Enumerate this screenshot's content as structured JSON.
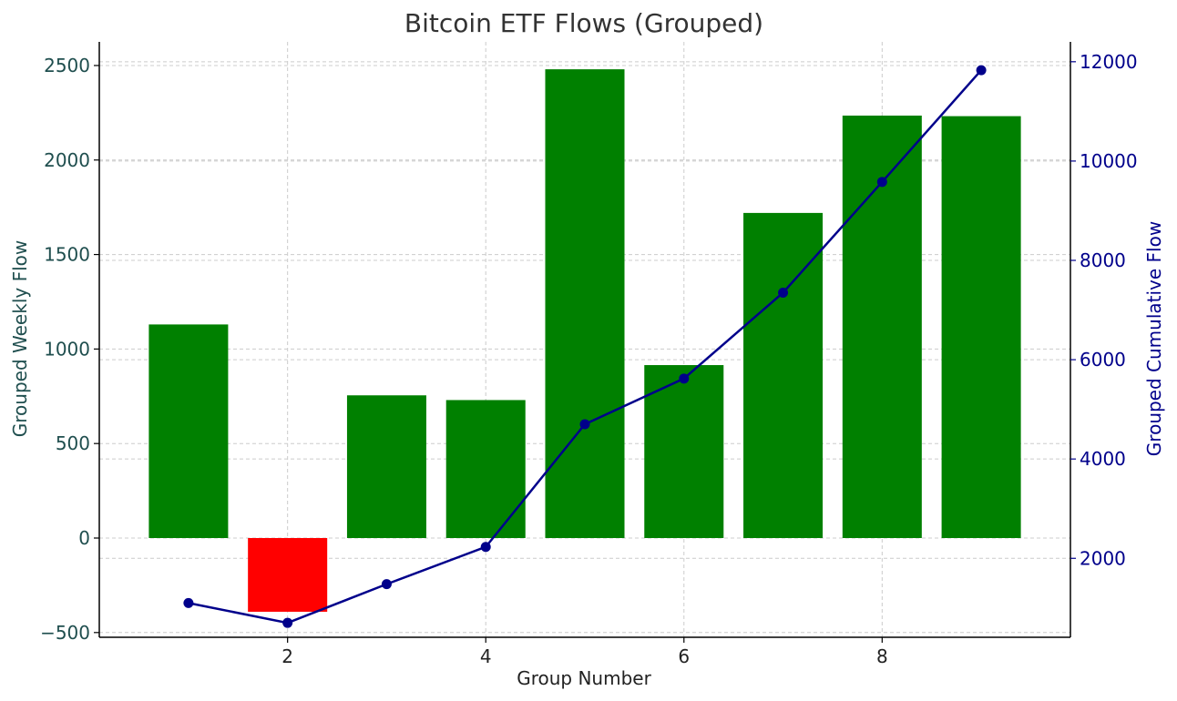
{
  "chart_data": {
    "type": "bar",
    "title": "Bitcoin ETF Flows (Grouped)",
    "xlabel": "Group Number",
    "ylabel_left": "Grouped Weekly Flow",
    "ylabel_right": "Grouped Cumulative Flow",
    "x": [
      1,
      2,
      3,
      4,
      5,
      6,
      7,
      8,
      9
    ],
    "x_ticks": [
      2,
      4,
      6,
      8
    ],
    "x_tick_labels": [
      "2",
      "4",
      "6",
      "8"
    ],
    "bar_values": [
      1130,
      -390,
      755,
      730,
      2480,
      915,
      1720,
      2235,
      2232
    ],
    "line_values": [
      1100,
      700,
      1480,
      2230,
      4700,
      5620,
      7350,
      9580,
      11830
    ],
    "ylim_left": [
      -525,
      2625
    ],
    "ylim_right": [
      410,
      12400
    ],
    "y_left_ticks": [
      -500,
      0,
      500,
      1000,
      1500,
      2000,
      2500
    ],
    "y_left_tick_labels": [
      "−500",
      "0",
      "500",
      "1000",
      "1500",
      "2000",
      "2500"
    ],
    "y_right_ticks": [
      2000,
      4000,
      6000,
      8000,
      10000,
      12000
    ],
    "y_right_tick_labels": [
      "2000",
      "4000",
      "6000",
      "8000",
      "10000",
      "12000"
    ],
    "grid": true,
    "colors": {
      "positive_bar": "#008000",
      "negative_bar": "#ff0000",
      "line": "#00008b",
      "left_axis_text": "#1f4e4e",
      "right_axis_text": "#00008b",
      "grid": "#cccccc",
      "axis": "#000000"
    }
  }
}
